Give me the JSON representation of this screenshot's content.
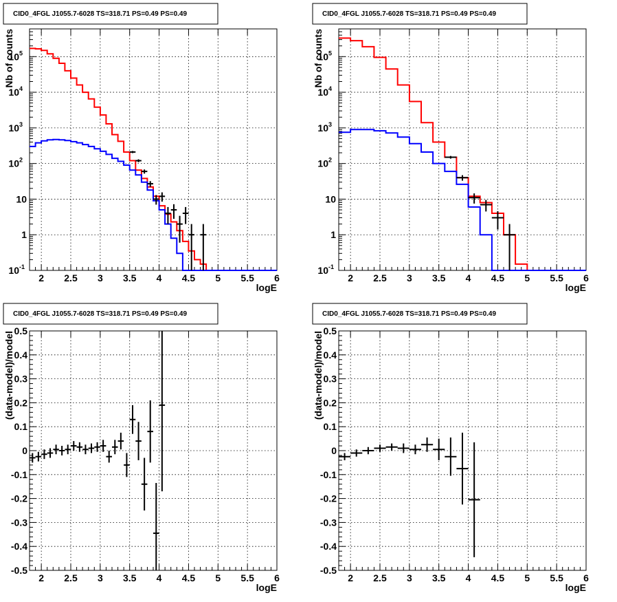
{
  "colors": {
    "model_total": "#ff0000",
    "model_source": "#0000ff",
    "data": "#000000"
  },
  "panels": [
    {
      "title": "CID0_4FGL J1055.7-6028 TS=318.71 PS=0.49 PS=0.49",
      "xlabel": "logE",
      "ylabel": "Nb of counts",
      "yticks": [
        {
          "base": "10",
          "exp": "-1"
        },
        {
          "base": "1",
          "exp": ""
        },
        {
          "base": "10",
          "exp": ""
        },
        {
          "base": "10",
          "exp": "2"
        },
        {
          "base": "10",
          "exp": "3"
        },
        {
          "base": "10",
          "exp": "4"
        },
        {
          "base": "10",
          "exp": "5"
        }
      ],
      "xticks": [
        "2",
        "2.5",
        "3",
        "3.5",
        "4",
        "4.5",
        "5",
        "5.5",
        "6"
      ]
    },
    {
      "title": "CID0_4FGL J1055.7-6028 TS=318.71 PS=0.49 PS=0.49",
      "xlabel": "logE",
      "ylabel": "Nb of counts",
      "yticks": [
        {
          "base": "10",
          "exp": "-1"
        },
        {
          "base": "1",
          "exp": ""
        },
        {
          "base": "10",
          "exp": ""
        },
        {
          "base": "10",
          "exp": "2"
        },
        {
          "base": "10",
          "exp": "3"
        },
        {
          "base": "10",
          "exp": "4"
        },
        {
          "base": "10",
          "exp": "5"
        }
      ],
      "xticks": [
        "2",
        "2.5",
        "3",
        "3.5",
        "4",
        "4.5",
        "5",
        "5.5",
        "6"
      ]
    },
    {
      "title": "CID0_4FGL J1055.7-6028 TS=318.71 PS=0.49 PS=0.49",
      "xlabel": "logE",
      "ylabel": "(data-model)/model",
      "yticks_text": [
        "-0.5",
        "-0.4",
        "-0.3",
        "-0.2",
        "-0.1",
        "0",
        "0.1",
        "0.2",
        "0.3",
        "0.4",
        "0.5"
      ],
      "xticks": [
        "2",
        "2.5",
        "3",
        "3.5",
        "4",
        "4.5",
        "5",
        "5.5",
        "6"
      ]
    },
    {
      "title": "CID0_4FGL J1055.7-6028 TS=318.71 PS=0.49 PS=0.49",
      "xlabel": "logE",
      "ylabel": "(data-model)/model",
      "yticks_text": [
        "-0.5",
        "-0.4",
        "-0.3",
        "-0.2",
        "-0.1",
        "0",
        "0.1",
        "0.2",
        "0.3",
        "0.4",
        "0.5"
      ],
      "xticks": [
        "2",
        "2.5",
        "3",
        "3.5",
        "4",
        "4.5",
        "5",
        "5.5",
        "6"
      ]
    }
  ],
  "chart_data": [
    {
      "type": "line",
      "step_histogram": true,
      "log_y": true,
      "xlim": [
        1.8,
        6.0
      ],
      "ylim": [
        0.1,
        600000
      ],
      "grid": true,
      "bin_edges": [
        1.8,
        1.9,
        2.0,
        2.1,
        2.2,
        2.3,
        2.4,
        2.5,
        2.6,
        2.7,
        2.8,
        2.9,
        3.0,
        3.1,
        3.2,
        3.3,
        3.4,
        3.5,
        3.6,
        3.7,
        3.8,
        3.9,
        4.0,
        4.1,
        4.2,
        4.3,
        4.4,
        4.5,
        4.6,
        4.7,
        4.8,
        4.9,
        5.0,
        5.1,
        5.2,
        5.3,
        5.4,
        5.5,
        5.6,
        5.7,
        5.8,
        5.9,
        6.0
      ],
      "series": [
        {
          "color": "#ff0000",
          "values": [
            170000,
            165000,
            150000,
            120000,
            90000,
            65000,
            40000,
            25000,
            16000,
            10000,
            6500,
            3800,
            2300,
            1300,
            650,
            420,
            210,
            120,
            65,
            38,
            22,
            12,
            6.5,
            3.8,
            2.3,
            1.3,
            0.65,
            0.35,
            0.2,
            0.15,
            0.1,
            0.1,
            0.1,
            0.1,
            0.1,
            0.1,
            0.1,
            0.1,
            0.1,
            0.1,
            0.1,
            0.1
          ]
        },
        {
          "color": "#0000ff",
          "values": [
            300,
            380,
            430,
            460,
            470,
            460,
            440,
            410,
            380,
            340,
            300,
            260,
            220,
            180,
            140,
            115,
            90,
            65,
            48,
            30,
            18,
            9,
            5,
            2,
            0.8,
            0.3,
            0.1,
            0.1,
            0.1,
            0.1,
            0.1,
            0.1,
            0.1,
            0.1,
            0.1,
            0.1,
            0.1,
            0.1,
            0.1,
            0.1,
            0.1,
            0.1
          ]
        }
      ],
      "points": [
        {
          "x": 3.55,
          "y": 210,
          "xerr": 0.05,
          "ylo": 196,
          "yhi": 224
        },
        {
          "x": 3.65,
          "y": 120,
          "xerr": 0.05,
          "ylo": 109,
          "yhi": 131
        },
        {
          "x": 3.75,
          "y": 60,
          "xerr": 0.05,
          "ylo": 52,
          "yhi": 68
        },
        {
          "x": 3.85,
          "y": 27,
          "xerr": 0.05,
          "ylo": 22,
          "yhi": 32
        },
        {
          "x": 3.95,
          "y": 10,
          "xerr": 0.05,
          "ylo": 7,
          "yhi": 13
        },
        {
          "x": 4.05,
          "y": 12,
          "xerr": 0.05,
          "ylo": 8.5,
          "yhi": 15.5
        },
        {
          "x": 4.15,
          "y": 4,
          "xerr": 0.05,
          "ylo": 2,
          "yhi": 6
        },
        {
          "x": 4.25,
          "y": 5,
          "xerr": 0.05,
          "ylo": 2.8,
          "yhi": 7.2
        },
        {
          "x": 4.35,
          "y": 2,
          "xerr": 0.05,
          "ylo": 0.6,
          "yhi": 3.4
        },
        {
          "x": 4.45,
          "y": 4,
          "xerr": 0.05,
          "ylo": 2,
          "yhi": 6
        },
        {
          "x": 4.55,
          "y": 1,
          "xerr": 0.05,
          "ylo": 0.1,
          "yhi": 2
        },
        {
          "x": 4.75,
          "y": 1,
          "xerr": 0.05,
          "ylo": 0.1,
          "yhi": 2
        }
      ]
    },
    {
      "type": "line",
      "step_histogram": true,
      "log_y": true,
      "xlim": [
        1.8,
        6.0
      ],
      "ylim": [
        0.1,
        600000
      ],
      "grid": true,
      "bin_edges": [
        1.8,
        2.0,
        2.2,
        2.4,
        2.6,
        2.8,
        3.0,
        3.2,
        3.4,
        3.6,
        3.8,
        4.0,
        4.2,
        4.4,
        4.6,
        4.8,
        5.0,
        5.2,
        5.4,
        5.6,
        5.8,
        6.0
      ],
      "series": [
        {
          "color": "#ff0000",
          "values": [
            330000,
            280000,
            190000,
            95000,
            45000,
            16000,
            5500,
            1400,
            400,
            150,
            40,
            12,
            8,
            4,
            1,
            0.15,
            0.1,
            0.1,
            0.1,
            0.1,
            0.1
          ]
        },
        {
          "color": "#0000ff",
          "values": [
            750,
            900,
            900,
            830,
            720,
            550,
            360,
            210,
            100,
            60,
            26,
            6,
            1,
            0.1,
            0.1,
            0.1,
            0.1,
            0.1,
            0.1,
            0.1,
            0.1
          ]
        }
      ],
      "points": [
        {
          "x": 3.7,
          "y": 150,
          "xerr": 0.1,
          "ylo": 137,
          "yhi": 163
        },
        {
          "x": 3.9,
          "y": 40,
          "xerr": 0.1,
          "ylo": 33,
          "yhi": 47
        },
        {
          "x": 4.1,
          "y": 11,
          "xerr": 0.1,
          "ylo": 7.5,
          "yhi": 14.5
        },
        {
          "x": 4.3,
          "y": 7,
          "xerr": 0.1,
          "ylo": 4.5,
          "yhi": 9.5
        },
        {
          "x": 4.5,
          "y": 3,
          "xerr": 0.1,
          "ylo": 1.4,
          "yhi": 4.6
        },
        {
          "x": 4.7,
          "y": 1,
          "xerr": 0.1,
          "ylo": 0.1,
          "yhi": 2
        }
      ]
    },
    {
      "type": "scatter",
      "xlim": [
        1.8,
        6.0
      ],
      "ylim": [
        -0.5,
        0.5
      ],
      "grid": true,
      "points": [
        {
          "x": 1.85,
          "y": -0.03,
          "xerr": 0.05,
          "ylo": -0.05,
          "yhi": -0.01
        },
        {
          "x": 1.95,
          "y": -0.025,
          "xerr": 0.05,
          "ylo": -0.045,
          "yhi": -0.005
        },
        {
          "x": 2.05,
          "y": -0.015,
          "xerr": 0.05,
          "ylo": -0.035,
          "yhi": 0.005
        },
        {
          "x": 2.15,
          "y": -0.01,
          "xerr": 0.05,
          "ylo": -0.03,
          "yhi": 0.01
        },
        {
          "x": 2.25,
          "y": 0.005,
          "xerr": 0.05,
          "ylo": -0.015,
          "yhi": 0.025
        },
        {
          "x": 2.35,
          "y": 0.0,
          "xerr": 0.05,
          "ylo": -0.02,
          "yhi": 0.02
        },
        {
          "x": 2.45,
          "y": 0.005,
          "xerr": 0.05,
          "ylo": -0.015,
          "yhi": 0.025
        },
        {
          "x": 2.55,
          "y": 0.02,
          "xerr": 0.05,
          "ylo": 0.0,
          "yhi": 0.04
        },
        {
          "x": 2.65,
          "y": 0.015,
          "xerr": 0.05,
          "ylo": -0.005,
          "yhi": 0.035
        },
        {
          "x": 2.75,
          "y": 0.005,
          "xerr": 0.05,
          "ylo": -0.015,
          "yhi": 0.025
        },
        {
          "x": 2.85,
          "y": 0.01,
          "xerr": 0.05,
          "ylo": -0.01,
          "yhi": 0.03
        },
        {
          "x": 2.95,
          "y": 0.015,
          "xerr": 0.05,
          "ylo": -0.005,
          "yhi": 0.035
        },
        {
          "x": 3.05,
          "y": 0.02,
          "xerr": 0.05,
          "ylo": -0.005,
          "yhi": 0.045
        },
        {
          "x": 3.15,
          "y": -0.025,
          "xerr": 0.05,
          "ylo": -0.05,
          "yhi": 0.0
        },
        {
          "x": 3.25,
          "y": 0.015,
          "xerr": 0.05,
          "ylo": -0.015,
          "yhi": 0.045
        },
        {
          "x": 3.35,
          "y": 0.04,
          "xerr": 0.05,
          "ylo": 0.005,
          "yhi": 0.075
        },
        {
          "x": 3.45,
          "y": -0.06,
          "xerr": 0.05,
          "ylo": -0.11,
          "yhi": -0.01
        },
        {
          "x": 3.55,
          "y": 0.13,
          "xerr": 0.05,
          "ylo": 0.07,
          "yhi": 0.19
        },
        {
          "x": 3.65,
          "y": 0.04,
          "xerr": 0.05,
          "ylo": -0.04,
          "yhi": 0.12
        },
        {
          "x": 3.75,
          "y": -0.14,
          "xerr": 0.05,
          "ylo": -0.25,
          "yhi": -0.03
        },
        {
          "x": 3.85,
          "y": 0.08,
          "xerr": 0.05,
          "ylo": -0.05,
          "yhi": 0.21
        },
        {
          "x": 3.95,
          "y": -0.345,
          "xerr": 0.05,
          "ylo": -0.5,
          "yhi": -0.135
        },
        {
          "x": 4.05,
          "y": 0.19,
          "xerr": 0.05,
          "ylo": -0.17,
          "yhi": 0.5
        }
      ]
    },
    {
      "type": "scatter",
      "xlim": [
        1.8,
        6.0
      ],
      "ylim": [
        -0.5,
        0.5
      ],
      "grid": true,
      "points": [
        {
          "x": 1.9,
          "y": -0.025,
          "xerr": 0.1,
          "ylo": -0.04,
          "yhi": -0.01
        },
        {
          "x": 2.1,
          "y": -0.01,
          "xerr": 0.1,
          "ylo": -0.025,
          "yhi": 0.005
        },
        {
          "x": 2.3,
          "y": 0.0,
          "xerr": 0.1,
          "ylo": -0.015,
          "yhi": 0.015
        },
        {
          "x": 2.5,
          "y": 0.01,
          "xerr": 0.1,
          "ylo": -0.005,
          "yhi": 0.025
        },
        {
          "x": 2.7,
          "y": 0.015,
          "xerr": 0.1,
          "ylo": 0.0,
          "yhi": 0.03
        },
        {
          "x": 2.9,
          "y": 0.01,
          "xerr": 0.1,
          "ylo": -0.01,
          "yhi": 0.03
        },
        {
          "x": 3.1,
          "y": 0.005,
          "xerr": 0.1,
          "ylo": -0.015,
          "yhi": 0.025
        },
        {
          "x": 3.3,
          "y": 0.025,
          "xerr": 0.1,
          "ylo": -0.005,
          "yhi": 0.055
        },
        {
          "x": 3.5,
          "y": 0.005,
          "xerr": 0.1,
          "ylo": -0.04,
          "yhi": 0.05
        },
        {
          "x": 3.7,
          "y": -0.025,
          "xerr": 0.1,
          "ylo": -0.105,
          "yhi": 0.055
        },
        {
          "x": 3.9,
          "y": -0.075,
          "xerr": 0.1,
          "ylo": -0.225,
          "yhi": 0.075
        },
        {
          "x": 4.1,
          "y": -0.205,
          "xerr": 0.1,
          "ylo": -0.445,
          "yhi": 0.035
        }
      ]
    }
  ]
}
